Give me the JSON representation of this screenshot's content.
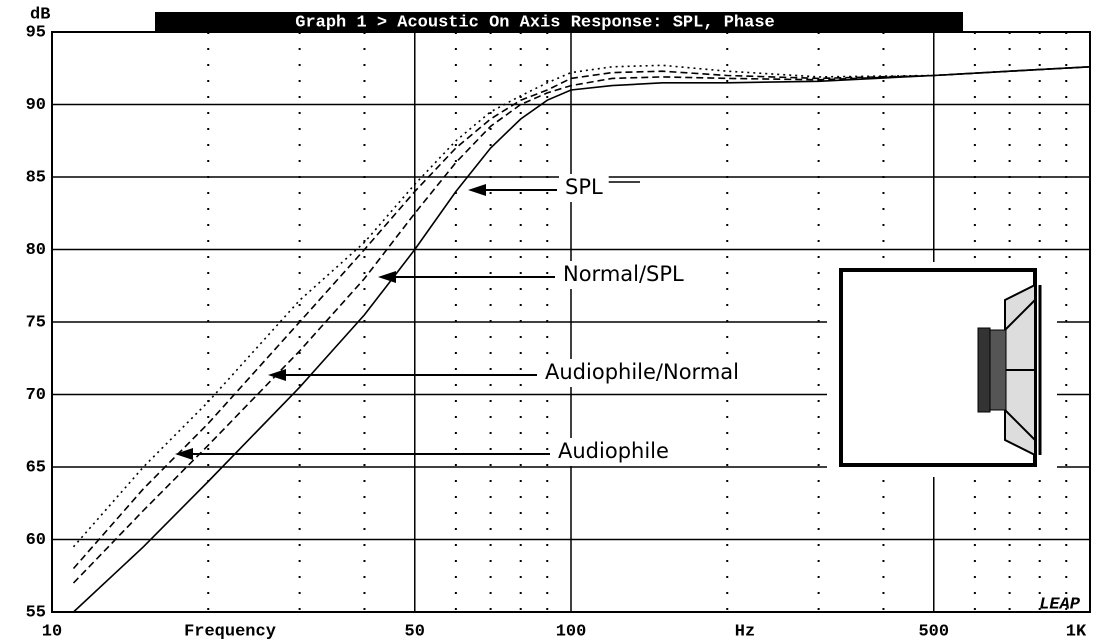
{
  "chart_data": {
    "type": "line",
    "title": "Graph 1 > Acoustic On Axis Response: SPL, Phase",
    "ylabel": "dB",
    "xlabel": "Frequency",
    "xunit": "Hz",
    "logo": "LEAP",
    "xscale": "log",
    "grid": true,
    "xlim": [
      10,
      1000
    ],
    "ylim": [
      55,
      95
    ],
    "xticks": [
      10,
      50,
      100,
      500,
      {
        "value": 1000,
        "label": "1K"
      }
    ],
    "xminor_grid": [
      20,
      30,
      40,
      60,
      70,
      80,
      90,
      200,
      300,
      400,
      600,
      700,
      800,
      900
    ],
    "yticks": [
      55,
      60,
      65,
      70,
      75,
      80,
      85,
      90,
      95
    ],
    "x": [
      11,
      15,
      20,
      30,
      40,
      50,
      60,
      70,
      80,
      90,
      100,
      120,
      150,
      200,
      300,
      500,
      700,
      1000
    ],
    "series": [
      {
        "name": "SPL",
        "color": "#000000",
        "dash": "solid",
        "values": [
          55,
          59.5,
          64,
          70.5,
          75.5,
          80,
          84,
          87,
          89,
          90.3,
          91,
          91.3,
          91.5,
          91.5,
          91.6,
          92,
          92.3,
          92.6
        ]
      },
      {
        "name": "Normal/SPL",
        "color": "#000000",
        "dash": "dashed",
        "values": [
          57,
          62,
          66.5,
          73,
          78,
          82.5,
          86,
          88.5,
          90,
          90.8,
          91.3,
          91.8,
          91.9,
          91.8,
          91.7,
          92,
          92.3,
          92.6
        ]
      },
      {
        "name": "Audiophile/Normal",
        "color": "#000000",
        "dash": "dashed",
        "values": [
          58,
          63.5,
          68,
          75,
          80,
          84,
          87,
          89,
          90.3,
          91,
          91.8,
          92.2,
          92.3,
          92,
          91.8,
          92,
          92.3,
          92.6
        ]
      },
      {
        "name": "Audiophile",
        "color": "#000000",
        "dash": "dotted",
        "values": [
          59.5,
          65,
          69.5,
          76.5,
          80.5,
          84.5,
          87.5,
          89.5,
          90.6,
          91.5,
          92.2,
          92.6,
          92.7,
          92.3,
          91.9,
          92,
          92.3,
          92.6
        ]
      }
    ]
  }
}
